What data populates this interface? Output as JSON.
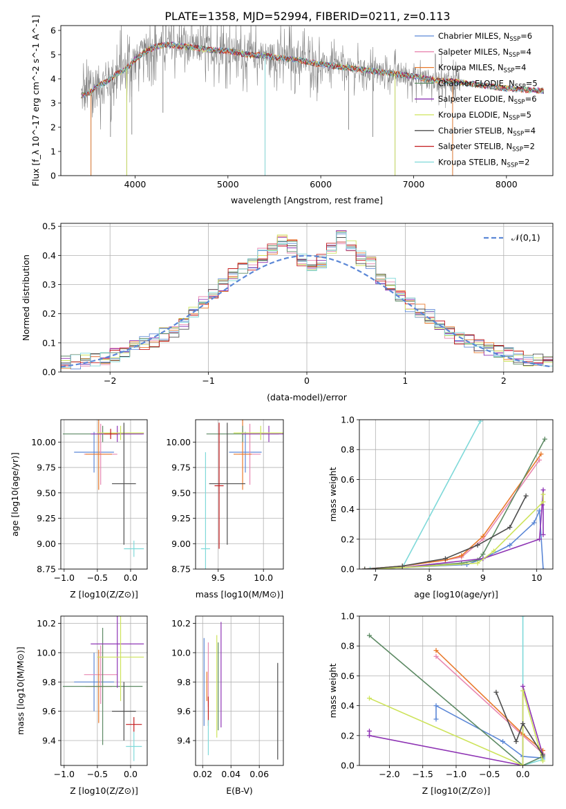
{
  "figure_title": "PLATE=1358, MJD=52994, FIBERID=0211, z=0.113",
  "colors": {
    "blue": "#5b87d6",
    "pink": "#e887b0",
    "orange": "#e8792b",
    "green": "#5d8a64",
    "purple": "#8e34b4",
    "yellowgreen": "#cde35a",
    "darkgray": "#4d4d4d",
    "red": "#c2191b",
    "cyan": "#7fd9d9",
    "gray": "#808080"
  },
  "chart_data": [
    {
      "id": "spectrum",
      "type": "line",
      "title": "PLATE=1358, MJD=52994, FIBERID=0211, z=0.113",
      "xlabel": "wavelength [Angstrom, rest frame]",
      "ylabel": "Flux [f_λ 10^-17 erg cm^-2 s^-1 A^-1]",
      "xlim": [
        3200,
        8500
      ],
      "ylim": [
        0,
        6.2
      ],
      "xticks": [
        4000,
        5000,
        6000,
        7000,
        8000
      ],
      "yticks": [
        0,
        1,
        2,
        3,
        4,
        5,
        6
      ],
      "grid": false,
      "legend_position": "upper-right",
      "legend": [
        {
          "name": "Chabrier MILES, N_SSP=6",
          "color": "#5b87d6"
        },
        {
          "name": "Salpeter MILES, N_SSP=4",
          "color": "#e887b0"
        },
        {
          "name": "Kroupa MILES, N_SSP=4",
          "color": "#e8792b"
        },
        {
          "name": "Chabrier ELODIE, N_SSP=5",
          "color": "#5d8a64"
        },
        {
          "name": "Salpeter ELODIE, N_SSP=6",
          "color": "#8e34b4"
        },
        {
          "name": "Kroupa ELODIE, N_SSP=5",
          "color": "#cde35a"
        },
        {
          "name": "Chabrier STELIB, N_SSP=4",
          "color": "#4d4d4d"
        },
        {
          "name": "Salpeter STELIB, N_SSP=2",
          "color": "#c2191b"
        },
        {
          "name": "Kroupa STELIB, N_SSP=2",
          "color": "#7fd9d9"
        }
      ],
      "data_series_color": "#808080",
      "model_continuum": {
        "x": [
          3420,
          3500,
          3600,
          3700,
          3800,
          3900,
          4000,
          4100,
          4200,
          4300,
          4400,
          4500,
          4600,
          4800,
          5000,
          5200,
          5400,
          5600,
          5800,
          6000,
          6200,
          6400,
          6600,
          6800,
          7000,
          7200,
          7400,
          7600,
          7800,
          8000,
          8200,
          8400
        ],
        "y": [
          3.3,
          3.4,
          3.7,
          3.9,
          4.2,
          4.4,
          4.8,
          5.1,
          5.3,
          5.4,
          5.4,
          5.35,
          5.3,
          5.2,
          5.15,
          5.0,
          4.95,
          4.85,
          4.75,
          4.6,
          4.5,
          4.4,
          4.3,
          4.2,
          4.1,
          3.95,
          3.9,
          3.8,
          3.7,
          3.6,
          3.55,
          3.5
        ]
      },
      "absorption_spikes": [
        {
          "x": 3525,
          "y": 0.0
        },
        {
          "x": 3735,
          "y": 1.6
        },
        {
          "x": 3910,
          "y": 0.0
        },
        {
          "x": 3965,
          "y": 1.7
        },
        {
          "x": 4300,
          "y": 2.6
        },
        {
          "x": 5400,
          "y": 0.0
        },
        {
          "x": 6300,
          "y": 1.9
        },
        {
          "x": 6560,
          "y": 1.6
        },
        {
          "x": 6800,
          "y": 0.0
        },
        {
          "x": 7420,
          "y": 0.0
        }
      ]
    },
    {
      "id": "residuals",
      "type": "line",
      "xlabel": "(data-model)/error",
      "ylabel": "Normed distribution",
      "xlim": [
        -2.5,
        2.5
      ],
      "ylim": [
        0,
        0.51
      ],
      "xticks": [
        -2,
        -1,
        0,
        1,
        2
      ],
      "yticks": [
        0,
        0.1,
        0.2,
        0.3,
        0.4,
        0.5
      ],
      "grid": true,
      "legend_position": "upper-right",
      "legend": [
        {
          "name": "𝒩(0,1)",
          "color": "#5b87d6",
          "style": "dashed"
        }
      ],
      "bin_width": 0.1,
      "histogram_base": {
        "x": [
          -2.5,
          -2.4,
          -2.3,
          -2.2,
          -2.1,
          -2.0,
          -1.9,
          -1.8,
          -1.7,
          -1.6,
          -1.5,
          -1.4,
          -1.3,
          -1.2,
          -1.1,
          -1.0,
          -0.9,
          -0.8,
          -0.7,
          -0.6,
          -0.5,
          -0.4,
          -0.3,
          -0.2,
          -0.1,
          0.0,
          0.1,
          0.2,
          0.3,
          0.4,
          0.5,
          0.6,
          0.7,
          0.8,
          0.9,
          1.0,
          1.1,
          1.2,
          1.3,
          1.4,
          1.5,
          1.6,
          1.7,
          1.8,
          1.9,
          2.0,
          2.1,
          2.2,
          2.3,
          2.4
        ],
        "y": [
          0.03,
          0.035,
          0.04,
          0.045,
          0.05,
          0.06,
          0.07,
          0.085,
          0.1,
          0.11,
          0.13,
          0.14,
          0.17,
          0.2,
          0.24,
          0.27,
          0.3,
          0.33,
          0.35,
          0.37,
          0.4,
          0.42,
          0.45,
          0.43,
          0.38,
          0.37,
          0.38,
          0.43,
          0.46,
          0.44,
          0.39,
          0.37,
          0.32,
          0.3,
          0.26,
          0.23,
          0.21,
          0.19,
          0.16,
          0.14,
          0.12,
          0.11,
          0.09,
          0.08,
          0.07,
          0.06,
          0.05,
          0.045,
          0.04,
          0.035
        ]
      },
      "gaussian": {
        "mean": 0,
        "sigma": 1
      }
    },
    {
      "id": "age_vs_Z",
      "type": "scatter",
      "xlabel": "Z [log10(Z/Z⊙)]",
      "ylabel": "age [log10(age/yr)]",
      "xlim": [
        -1.05,
        0.25
      ],
      "ylim": [
        8.75,
        10.22
      ],
      "xticks": [
        -1.0,
        -0.5,
        0.0
      ],
      "yticks": [
        8.75,
        9.0,
        9.25,
        9.5,
        9.75,
        10.0
      ],
      "grid": true,
      "points": [
        {
          "color": "#5b87d6",
          "x": -0.55,
          "y": 9.9,
          "xerr": 0.3,
          "yerr": 0.2
        },
        {
          "color": "#e887b0",
          "x": -0.45,
          "y": 9.88,
          "xerr": 0.25,
          "yerr": 0.3
        },
        {
          "color": "#e8792b",
          "x": -0.48,
          "y": 9.88,
          "xerr": 0.2,
          "yerr": 0.35
        },
        {
          "color": "#5d8a64",
          "x": -0.42,
          "y": 10.08,
          "xerr": 0.6,
          "yerr": 0.08
        },
        {
          "color": "#8e34b4",
          "x": -0.2,
          "y": 10.08,
          "xerr": 0.4,
          "yerr": 0.08
        },
        {
          "color": "#cde35a",
          "x": -0.15,
          "y": 10.09,
          "xerr": 0.35,
          "yerr": 0.07
        },
        {
          "color": "#4d4d4d",
          "x": -0.1,
          "y": 9.59,
          "xerr": 0.18,
          "yerr": 0.6
        },
        {
          "color": "#c2191b",
          "x": -0.3,
          "y": 10.08,
          "xerr": 0.1,
          "yerr": 0.05
        },
        {
          "color": "#7fd9d9",
          "x": 0.05,
          "y": 8.95,
          "xerr": 0.15,
          "yerr": 0.08
        }
      ]
    },
    {
      "id": "age_vs_mass",
      "type": "scatter",
      "xlabel": "mass [log10(M/M⊙)]",
      "ylabel": "",
      "xlim": [
        9.25,
        10.22
      ],
      "ylim": [
        8.75,
        10.22
      ],
      "xticks": [
        9.5,
        10.0
      ],
      "yticks": [
        8.75,
        9.0,
        9.25,
        9.5,
        9.75,
        10.0
      ],
      "grid": true,
      "points": [
        {
          "color": "#5b87d6",
          "x": 9.8,
          "y": 9.9,
          "xerr": 0.18,
          "yerr": 0.2
        },
        {
          "color": "#e887b0",
          "x": 9.85,
          "y": 9.88,
          "xerr": 0.12,
          "yerr": 0.3
        },
        {
          "color": "#e8792b",
          "x": 9.77,
          "y": 9.88,
          "xerr": 0.1,
          "yerr": 0.35
        },
        {
          "color": "#5d8a64",
          "x": 9.77,
          "y": 10.08,
          "xerr": 0.4,
          "yerr": 0.08
        },
        {
          "color": "#8e34b4",
          "x": 10.06,
          "y": 10.08,
          "xerr": 0.3,
          "yerr": 0.08
        },
        {
          "color": "#cde35a",
          "x": 9.97,
          "y": 10.09,
          "xerr": 0.3,
          "yerr": 0.07
        },
        {
          "color": "#4d4d4d",
          "x": 9.6,
          "y": 9.59,
          "xerr": 0.2,
          "yerr": 0.6
        },
        {
          "color": "#c2191b",
          "x": 9.51,
          "y": 9.57,
          "xerr": 0.05,
          "yerr": 0.62
        },
        {
          "color": "#7fd9d9",
          "x": 9.36,
          "y": 8.95,
          "xerr": 0.05,
          "yerr": 0.95
        }
      ]
    },
    {
      "id": "mass_weight_vs_age",
      "type": "line",
      "xlabel": "age [log10(age/yr)]",
      "ylabel": "mass weight",
      "xlim": [
        6.7,
        10.3
      ],
      "ylim": [
        0,
        1.0
      ],
      "xticks": [
        7,
        8,
        9,
        10
      ],
      "yticks": [
        0.0,
        0.2,
        0.4,
        0.6,
        0.8,
        1.0
      ],
      "grid": true,
      "series": [
        {
          "color": "#7fd9d9",
          "x": [
            6.9,
            7.5,
            8.95
          ],
          "y": [
            0.0,
            0.01,
            0.99
          ]
        },
        {
          "color": "#5b87d6",
          "x": [
            6.8,
            7.5,
            8.7,
            9.0,
            9.5,
            9.95,
            10.05,
            10.12
          ],
          "y": [
            0.0,
            0.01,
            0.03,
            0.07,
            0.16,
            0.31,
            0.39,
            0.0
          ]
        },
        {
          "color": "#e887b0",
          "x": [
            6.8,
            7.5,
            8.3,
            8.6,
            9.0,
            10.05
          ],
          "y": [
            0.0,
            0.02,
            0.06,
            0.08,
            0.2,
            0.73
          ]
        },
        {
          "color": "#e8792b",
          "x": [
            6.8,
            7.5,
            8.3,
            8.6,
            9.0,
            10.08
          ],
          "y": [
            0.0,
            0.02,
            0.06,
            0.09,
            0.22,
            0.77
          ]
        },
        {
          "color": "#5d8a64",
          "x": [
            6.8,
            7.5,
            8.6,
            8.9,
            9.0,
            10.15
          ],
          "y": [
            0.0,
            0.01,
            0.04,
            0.06,
            0.1,
            0.87
          ]
        },
        {
          "color": "#8e34b4",
          "x": [
            6.8,
            7.5,
            9.0,
            10.05,
            10.1,
            10.12,
            10.12
          ],
          "y": [
            0.0,
            0.01,
            0.07,
            0.2,
            0.43,
            0.53,
            0.23
          ]
        },
        {
          "color": "#cde35a",
          "x": [
            6.8,
            7.5,
            8.9,
            9.2,
            10.12,
            10.12
          ],
          "y": [
            0.0,
            0.01,
            0.04,
            0.12,
            0.45,
            0.5
          ]
        },
        {
          "color": "#4d4d4d",
          "x": [
            6.8,
            7.5,
            8.3,
            8.9,
            9.5,
            9.8
          ],
          "y": [
            0.0,
            0.02,
            0.07,
            0.16,
            0.28,
            0.49
          ]
        }
      ]
    },
    {
      "id": "mass_vs_Z",
      "type": "scatter",
      "xlabel": "Z [log10(Z/Z⊙)]",
      "ylabel": "mass [log10(M/M⊙)]",
      "xlim": [
        -1.05,
        0.25
      ],
      "ylim": [
        9.23,
        10.25
      ],
      "xticks": [
        -1.0,
        -0.5,
        0.0
      ],
      "yticks": [
        9.4,
        9.6,
        9.8,
        10.0,
        10.2
      ],
      "grid": true,
      "points": [
        {
          "color": "#5b87d6",
          "x": -0.55,
          "y": 9.8,
          "xerr": 0.3,
          "yerr": 0.2
        },
        {
          "color": "#e887b0",
          "x": -0.45,
          "y": 9.85,
          "xerr": 0.25,
          "yerr": 0.2
        },
        {
          "color": "#e8792b",
          "x": -0.48,
          "y": 9.77,
          "xerr": 0.2,
          "yerr": 0.25
        },
        {
          "color": "#5d8a64",
          "x": -0.42,
          "y": 9.77,
          "xerr": 0.6,
          "yerr": 0.4
        },
        {
          "color": "#8e34b4",
          "x": -0.2,
          "y": 10.06,
          "xerr": 0.4,
          "yerr": 0.3
        },
        {
          "color": "#cde35a",
          "x": -0.15,
          "y": 9.97,
          "xerr": 0.35,
          "yerr": 0.3
        },
        {
          "color": "#4d4d4d",
          "x": -0.1,
          "y": 9.6,
          "xerr": 0.18,
          "yerr": 0.2
        },
        {
          "color": "#c2191b",
          "x": 0.05,
          "y": 9.51,
          "xerr": 0.12,
          "yerr": 0.05
        },
        {
          "color": "#7fd9d9",
          "x": 0.05,
          "y": 9.36,
          "xerr": 0.12,
          "yerr": 0.1
        }
      ]
    },
    {
      "id": "mass_vs_EBV",
      "type": "scatter",
      "xlabel": "E(B-V)",
      "ylabel": "",
      "xlim": [
        0.015,
        0.077
      ],
      "ylim": [
        9.23,
        10.25
      ],
      "xticks": [
        0.02,
        0.04,
        0.06
      ],
      "yticks": [
        9.4,
        9.6,
        9.8,
        10.0,
        10.2
      ],
      "grid": true,
      "points": [
        {
          "color": "#5b87d6",
          "x": 0.021,
          "y": 9.8,
          "xerr": 0.0,
          "yerr": 0.3
        },
        {
          "color": "#e887b0",
          "x": 0.024,
          "y": 9.85,
          "xerr": 0.0,
          "yerr": 0.22
        },
        {
          "color": "#e8792b",
          "x": 0.023,
          "y": 9.77,
          "xerr": 0.0,
          "yerr": 0.1
        },
        {
          "color": "#5d8a64",
          "x": 0.031,
          "y": 9.77,
          "xerr": 0.0,
          "yerr": 0.3
        },
        {
          "color": "#8e34b4",
          "x": 0.033,
          "y": 9.85,
          "xerr": 0.0,
          "yerr": 0.36
        },
        {
          "color": "#cde35a",
          "x": 0.03,
          "y": 9.77,
          "xerr": 0.0,
          "yerr": 0.35
        },
        {
          "color": "#4d4d4d",
          "x": 0.073,
          "y": 9.6,
          "xerr": 0.0,
          "yerr": 0.33
        },
        {
          "color": "#c2191b",
          "x": 0.024,
          "y": 9.6,
          "xerr": 0.0,
          "yerr": 0.1
        },
        {
          "color": "#7fd9d9",
          "x": 0.024,
          "y": 9.42,
          "xerr": 0.0,
          "yerr": 0.12
        }
      ]
    },
    {
      "id": "mass_weight_vs_Z",
      "type": "line",
      "xlabel": "Z [log10(Z/Z⊙)]",
      "ylabel": "mass weight",
      "xlim": [
        -2.45,
        0.45
      ],
      "ylim": [
        0,
        1.0
      ],
      "xticks": [
        -2.0,
        -1.5,
        -1.0,
        -0.5,
        0.0
      ],
      "yticks": [
        0.0,
        0.2,
        0.4,
        0.6,
        0.8,
        1.0
      ],
      "grid": true,
      "series": [
        {
          "color": "#7fd9d9",
          "x": [
            0.0,
            0.0,
            0.3
          ],
          "y": [
            1.0,
            0.0,
            0.04
          ]
        },
        {
          "color": "#5b87d6",
          "x": [
            -1.3,
            -1.3,
            -0.3,
            0.0,
            0.3
          ],
          "y": [
            0.31,
            0.4,
            0.16,
            0.06,
            0.05
          ]
        },
        {
          "color": "#e887b0",
          "x": [
            -1.3,
            0.0,
            0.3
          ],
          "y": [
            0.73,
            0.2,
            0.08
          ]
        },
        {
          "color": "#e8792b",
          "x": [
            -1.3,
            0.0,
            0.3
          ],
          "y": [
            0.77,
            0.21,
            0.1
          ]
        },
        {
          "color": "#5d8a64",
          "x": [
            -2.3,
            0.0,
            0.3
          ],
          "y": [
            0.87,
            0.0,
            0.06
          ]
        },
        {
          "color": "#8e34b4",
          "x": [
            -2.3,
            -2.3,
            0.0,
            0.0,
            0.3
          ],
          "y": [
            0.23,
            0.2,
            0.0,
            0.53,
            0.07
          ]
        },
        {
          "color": "#cde35a",
          "x": [
            -2.3,
            0.0,
            0.0,
            0.3
          ],
          "y": [
            0.45,
            0.0,
            0.5,
            0.03
          ]
        },
        {
          "color": "#4d4d4d",
          "x": [
            -0.4,
            -0.1,
            0.0,
            0.3
          ],
          "y": [
            0.49,
            0.16,
            0.28,
            0.07
          ]
        }
      ]
    }
  ]
}
